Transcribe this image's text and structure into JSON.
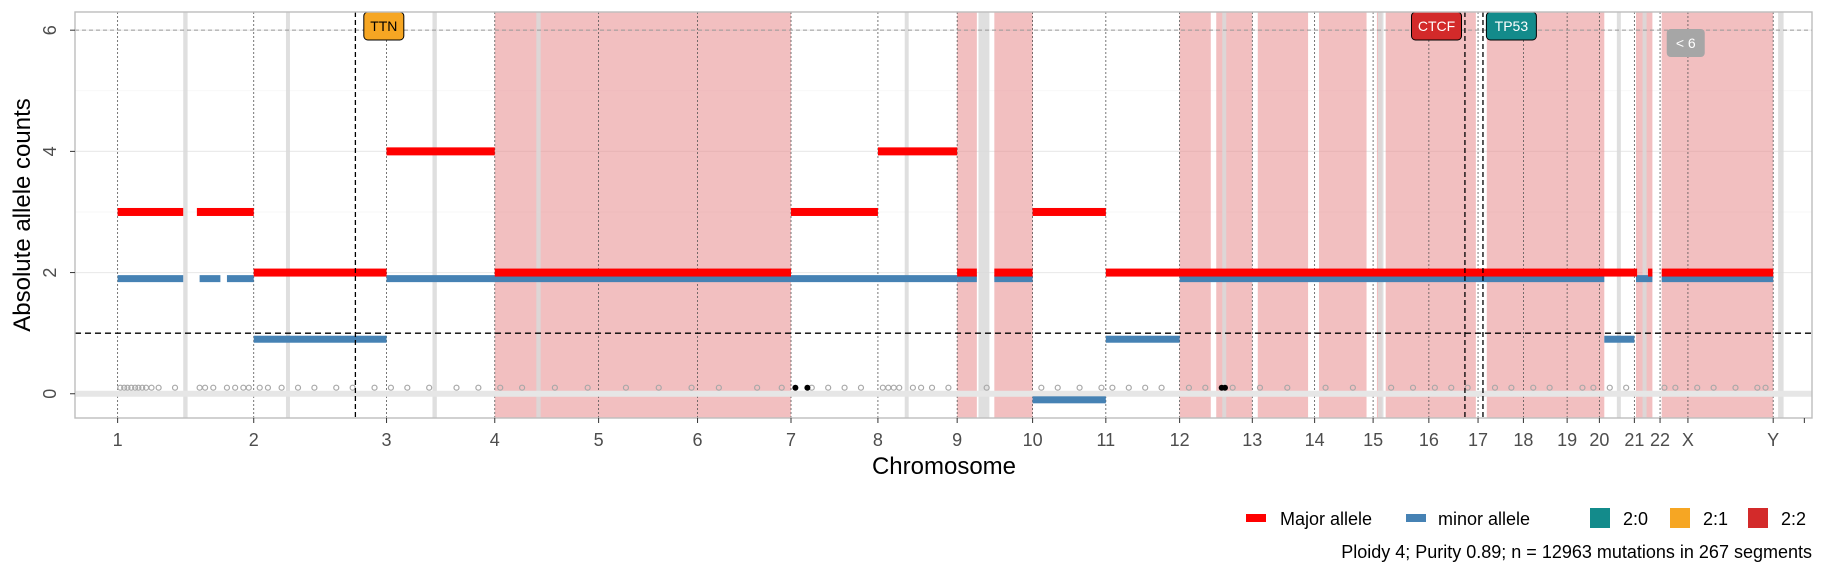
{
  "chart_data": {
    "type": "scatter",
    "xlabel": "Chromosome",
    "ylabel": "Absolute allele counts",
    "xlim": [
      -78000000,
      3100000000
    ],
    "ylim": [
      -0.4,
      6.3
    ],
    "yticks": [
      0,
      2,
      4,
      6
    ],
    "chromosomes": [
      {
        "name": "1",
        "start": 0,
        "end": 249000000
      },
      {
        "name": "2",
        "start": 249000000,
        "end": 492000000
      },
      {
        "name": "3",
        "start": 492000000,
        "end": 690000000
      },
      {
        "name": "4",
        "start": 690000000,
        "end": 880000000
      },
      {
        "name": "5",
        "start": 880000000,
        "end": 1061000000
      },
      {
        "name": "6",
        "start": 1061000000,
        "end": 1232000000
      },
      {
        "name": "7",
        "start": 1232000000,
        "end": 1391000000
      },
      {
        "name": "8",
        "start": 1391000000,
        "end": 1536000000
      },
      {
        "name": "9",
        "start": 1536000000,
        "end": 1674000000
      },
      {
        "name": "10",
        "start": 1674000000,
        "end": 1808000000
      },
      {
        "name": "11",
        "start": 1808000000,
        "end": 1943000000
      },
      {
        "name": "12",
        "start": 1943000000,
        "end": 2076000000
      },
      {
        "name": "13",
        "start": 2076000000,
        "end": 2190000000
      },
      {
        "name": "14",
        "start": 2190000000,
        "end": 2297000000
      },
      {
        "name": "15",
        "start": 2297000000,
        "end": 2399000000
      },
      {
        "name": "16",
        "start": 2399000000,
        "end": 2489000000
      },
      {
        "name": "17",
        "start": 2489000000,
        "end": 2572000000
      },
      {
        "name": "18",
        "start": 2572000000,
        "end": 2652000000
      },
      {
        "name": "19",
        "start": 2652000000,
        "end": 2711000000
      },
      {
        "name": "20",
        "start": 2711000000,
        "end": 2775000000
      },
      {
        "name": "21",
        "start": 2775000000,
        "end": 2822000000
      },
      {
        "name": "22",
        "start": 2822000000,
        "end": 2873000000
      },
      {
        "name": "X",
        "start": 2873000000,
        "end": 3029000000
      },
      {
        "name": "Y",
        "start": 3029000000,
        "end": 3086000000
      }
    ],
    "wgd_segments": [
      [
        690000000,
        1232000000
      ],
      [
        1536000000,
        1572000000
      ],
      [
        1604000000,
        1674000000
      ],
      [
        1943000000,
        2000000000
      ],
      [
        2010000000,
        2076000000
      ],
      [
        2086000000,
        2178000000
      ],
      [
        2198000000,
        2285000000
      ],
      [
        2304000000,
        2313000000
      ],
      [
        2320000000,
        2485000000
      ],
      [
        2505000000,
        2720000000
      ],
      [
        2778000000,
        2808000000
      ],
      [
        2825000000,
        3029000000
      ]
    ],
    "gap_bands": [
      [
        120000000,
        128000000
      ],
      [
        308000000,
        314000000
      ],
      [
        576000000,
        584000000
      ],
      [
        766000000,
        774000000
      ],
      [
        1575000000,
        1595000000
      ],
      [
        1440000000,
        1446000000
      ],
      [
        2021000000,
        2025000000
      ],
      [
        2306000000,
        2316000000
      ],
      [
        2743000000,
        2749000000
      ],
      [
        2790000000,
        2796000000
      ],
      [
        3038000000,
        3048000000
      ]
    ],
    "major_segments": [
      {
        "start": 0,
        "end": 120000000,
        "value": 3
      },
      {
        "start": 145000000,
        "end": 249000000,
        "value": 3
      },
      {
        "start": 249000000,
        "end": 492000000,
        "value": 2
      },
      {
        "start": 492000000,
        "end": 690000000,
        "value": 4
      },
      {
        "start": 690000000,
        "end": 1232000000,
        "value": 2
      },
      {
        "start": 1232000000,
        "end": 1391000000,
        "value": 3
      },
      {
        "start": 1391000000,
        "end": 1536000000,
        "value": 4
      },
      {
        "start": 1536000000,
        "end": 1572000000,
        "value": 2
      },
      {
        "start": 1604000000,
        "end": 1674000000,
        "value": 2
      },
      {
        "start": 1674000000,
        "end": 1808000000,
        "value": 3
      },
      {
        "start": 1808000000,
        "end": 2780000000,
        "value": 2
      },
      {
        "start": 2800000000,
        "end": 2808000000,
        "value": 2
      },
      {
        "start": 2825000000,
        "end": 3029000000,
        "value": 2
      }
    ],
    "minor_segments": [
      {
        "start": 0,
        "end": 120000000,
        "value": 1.9
      },
      {
        "start": 150000000,
        "end": 188000000,
        "value": 1.9
      },
      {
        "start": 200000000,
        "end": 249000000,
        "value": 1.9
      },
      {
        "start": 249000000,
        "end": 492000000,
        "value": 0.9
      },
      {
        "start": 492000000,
        "end": 1536000000,
        "value": 1.9
      },
      {
        "start": 1536000000,
        "end": 1572000000,
        "value": 1.9
      },
      {
        "start": 1604000000,
        "end": 1674000000,
        "value": 1.9
      },
      {
        "start": 1674000000,
        "end": 1808000000,
        "value": -0.1
      },
      {
        "start": 1808000000,
        "end": 1943000000,
        "value": 0.9
      },
      {
        "start": 1943000000,
        "end": 2720000000,
        "value": 1.9
      },
      {
        "start": 2720000000,
        "end": 2775000000,
        "value": 0.9
      },
      {
        "start": 2778000000,
        "end": 2808000000,
        "value": 1.9
      },
      {
        "start": 2825000000,
        "end": 3029000000,
        "value": 1.9
      }
    ],
    "mutation_points": [
      {
        "x": 5000000,
        "y": 0.1
      },
      {
        "x": 12000000,
        "y": 0.1
      },
      {
        "x": 18000000,
        "y": 0.1
      },
      {
        "x": 25000000,
        "y": 0.1
      },
      {
        "x": 32000000,
        "y": 0.1
      },
      {
        "x": 38000000,
        "y": 0.1
      },
      {
        "x": 45000000,
        "y": 0.1
      },
      {
        "x": 52000000,
        "y": 0.1
      },
      {
        "x": 62000000,
        "y": 0.1
      },
      {
        "x": 75000000,
        "y": 0.1
      },
      {
        "x": 105000000,
        "y": 0.1
      },
      {
        "x": 150000000,
        "y": 0.1
      },
      {
        "x": 160000000,
        "y": 0.1
      },
      {
        "x": 175000000,
        "y": 0.1
      },
      {
        "x": 200000000,
        "y": 0.1
      },
      {
        "x": 215000000,
        "y": 0.1
      },
      {
        "x": 230000000,
        "y": 0.1
      },
      {
        "x": 240000000,
        "y": 0.1
      },
      {
        "x": 260000000,
        "y": 0.1
      },
      {
        "x": 275000000,
        "y": 0.1
      },
      {
        "x": 300000000,
        "y": 0.1
      },
      {
        "x": 330000000,
        "y": 0.1
      },
      {
        "x": 360000000,
        "y": 0.1
      },
      {
        "x": 400000000,
        "y": 0.1
      },
      {
        "x": 430000000,
        "y": 0.1
      },
      {
        "x": 470000000,
        "y": 0.1
      },
      {
        "x": 500000000,
        "y": 0.1
      },
      {
        "x": 530000000,
        "y": 0.1
      },
      {
        "x": 570000000,
        "y": 0.1
      },
      {
        "x": 620000000,
        "y": 0.1
      },
      {
        "x": 660000000,
        "y": 0.1
      },
      {
        "x": 700000000,
        "y": 0.1
      },
      {
        "x": 740000000,
        "y": 0.1
      },
      {
        "x": 800000000,
        "y": 0.1
      },
      {
        "x": 860000000,
        "y": 0.1
      },
      {
        "x": 930000000,
        "y": 0.1
      },
      {
        "x": 990000000,
        "y": 0.1
      },
      {
        "x": 1050000000,
        "y": 0.1
      },
      {
        "x": 1100000000,
        "y": 0.1
      },
      {
        "x": 1170000000,
        "y": 0.1
      },
      {
        "x": 1215000000,
        "y": 0.1
      },
      {
        "x": 1270000000,
        "y": 0.1
      },
      {
        "x": 1300000000,
        "y": 0.1
      },
      {
        "x": 1330000000,
        "y": 0.1
      },
      {
        "x": 1360000000,
        "y": 0.1
      },
      {
        "x": 1400000000,
        "y": 0.1
      },
      {
        "x": 1410000000,
        "y": 0.1
      },
      {
        "x": 1420000000,
        "y": 0.1
      },
      {
        "x": 1430000000,
        "y": 0.1
      },
      {
        "x": 1455000000,
        "y": 0.1
      },
      {
        "x": 1470000000,
        "y": 0.1
      },
      {
        "x": 1490000000,
        "y": 0.1
      },
      {
        "x": 1520000000,
        "y": 0.1
      },
      {
        "x": 1590000000,
        "y": 0.1
      },
      {
        "x": 1690000000,
        "y": 0.1
      },
      {
        "x": 1720000000,
        "y": 0.1
      },
      {
        "x": 1760000000,
        "y": 0.1
      },
      {
        "x": 1800000000,
        "y": 0.1
      },
      {
        "x": 1820000000,
        "y": 0.1
      },
      {
        "x": 1850000000,
        "y": 0.1
      },
      {
        "x": 1880000000,
        "y": 0.1
      },
      {
        "x": 1910000000,
        "y": 0.1
      },
      {
        "x": 1960000000,
        "y": 0.1
      },
      {
        "x": 1990000000,
        "y": 0.1
      },
      {
        "x": 2040000000,
        "y": 0.1
      },
      {
        "x": 2090000000,
        "y": 0.1
      },
      {
        "x": 2140000000,
        "y": 0.1
      },
      {
        "x": 2210000000,
        "y": 0.1
      },
      {
        "x": 2260000000,
        "y": 0.1
      },
      {
        "x": 2330000000,
        "y": 0.1
      },
      {
        "x": 2370000000,
        "y": 0.1
      },
      {
        "x": 2410000000,
        "y": 0.1
      },
      {
        "x": 2440000000,
        "y": 0.1
      },
      {
        "x": 2470000000,
        "y": 0.1
      },
      {
        "x": 2520000000,
        "y": 0.1
      },
      {
        "x": 2550000000,
        "y": 0.1
      },
      {
        "x": 2590000000,
        "y": 0.1
      },
      {
        "x": 2620000000,
        "y": 0.1
      },
      {
        "x": 2680000000,
        "y": 0.1
      },
      {
        "x": 2700000000,
        "y": 0.1
      },
      {
        "x": 2730000000,
        "y": 0.1
      },
      {
        "x": 2760000000,
        "y": 0.1
      },
      {
        "x": 2830000000,
        "y": 0.1
      },
      {
        "x": 2850000000,
        "y": 0.1
      },
      {
        "x": 2890000000,
        "y": 0.1
      },
      {
        "x": 2920000000,
        "y": 0.1
      },
      {
        "x": 2960000000,
        "y": 0.1
      },
      {
        "x": 3000000000,
        "y": 0.1
      },
      {
        "x": 3015000000,
        "y": 0.1
      }
    ],
    "driver_points": [
      {
        "x": 1240000000,
        "y": 0.1
      },
      {
        "x": 1262000000,
        "y": 0.1
      },
      {
        "x": 2020000000,
        "y": 0.1
      },
      {
        "x": 2026000000,
        "y": 0.1
      }
    ],
    "ploidy_line": 1,
    "upper_line": 6,
    "gene_markers": [
      {
        "name": "TTN",
        "x": 435000000,
        "class": "2:1"
      },
      {
        "name": "CTCF",
        "x": 2465000000,
        "class": "2:2"
      },
      {
        "name": "TP53",
        "x": 2498000000,
        "class": "2:0"
      }
    ],
    "gene_label_offsets": {
      "TTN": 52000000,
      "CTCF": -52000000,
      "TP53": 52000000
    },
    "offscale_label": "< 6",
    "colors": {
      "major": "#ff0000",
      "minor": "#4682b4",
      "wgd_band": "#e78a8d",
      "gap_band": "#d9d9d9",
      "point": "#a8a8a8",
      "driver_point": "#000000",
      "class_2_0": "#138b8b",
      "class_2_1": "#f6a623",
      "class_2_2": "#d32a2a",
      "offscale_box": "#a6a6a6"
    },
    "legend": {
      "major_label": "Major allele",
      "minor_label": "minor allele",
      "classes": [
        "2:0",
        "2:1",
        "2:2"
      ]
    },
    "caption": "Ploidy 4; Purity  0.89; n = 12963 mutations in 267 segments"
  }
}
